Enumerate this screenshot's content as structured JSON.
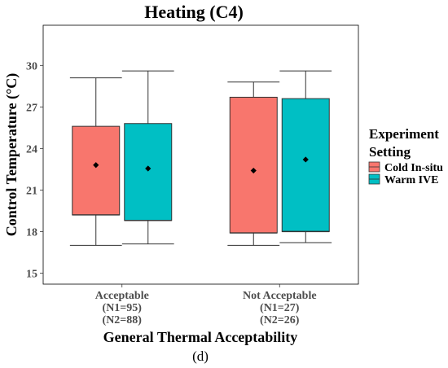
{
  "chart_data": {
    "type": "boxplot",
    "title": "Heating (C4)",
    "xlabel": "General Thermal Acceptability",
    "ylabel": "Control Temperature (°C)",
    "ylim": [
      14.2,
      32.9
    ],
    "yticks": [
      15,
      18,
      21,
      24,
      27,
      30
    ],
    "grid": false,
    "categories": [
      {
        "lines": [
          "Acceptable",
          "(N1=95)",
          "(N2=88)"
        ]
      },
      {
        "lines": [
          "Not Acceptable",
          "(N1=27)",
          "(N2=26)"
        ]
      }
    ],
    "series": [
      {
        "name": "Cold In-situ",
        "color": "#F8766D",
        "boxes": [
          {
            "min": 17.0,
            "q1": 19.2,
            "median": 19.2,
            "q3": 25.6,
            "max": 29.1,
            "mean": 22.8
          },
          {
            "min": 17.0,
            "q1": 17.9,
            "median": 17.9,
            "q3": 27.7,
            "max": 28.8,
            "mean": 22.4
          }
        ]
      },
      {
        "name": "Warm IVE",
        "color": "#00BFC4",
        "boxes": [
          {
            "min": 17.1,
            "q1": 18.8,
            "median": 18.8,
            "q3": 25.8,
            "max": 29.6,
            "mean": 22.55
          },
          {
            "min": 17.2,
            "q1": 18.0,
            "median": 18.0,
            "q3": 27.6,
            "max": 29.6,
            "mean": 23.2
          }
        ]
      }
    ],
    "legend": {
      "title_lines": [
        "Experiment",
        "Setting"
      ],
      "position": "right"
    }
  },
  "sub_label": "(d)"
}
